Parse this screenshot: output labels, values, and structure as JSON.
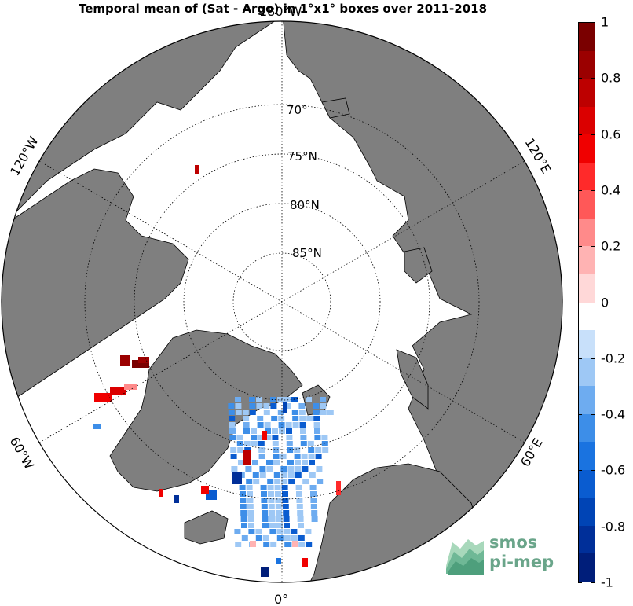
{
  "title": "Temporal mean of (Sat - Argo) in 1°x1° boxes over 2011-2018",
  "map": {
    "projection": "north polar stereographic",
    "lat_labels": [
      "70°",
      "75°N",
      "80°N",
      "85°N"
    ],
    "lon_labels": {
      "top": "180°W",
      "left_upper": "120°W",
      "right_upper": "120°E",
      "left_lower": "60°W",
      "right_lower": "60°E",
      "bottom": "0°"
    },
    "colors": {
      "land": "#7f7f7f",
      "ocean": "#ffffff",
      "coast": "#000000"
    }
  },
  "colorbar": {
    "min": -1,
    "max": 1,
    "step": 0.1,
    "tick_labels": [
      "1",
      "0.8",
      "0.6",
      "0.4",
      "0.2",
      "0",
      "-0.2",
      "-0.4",
      "-0.6",
      "-0.8",
      "-1"
    ],
    "colors_top_to_bottom": [
      "#7a0000",
      "#9b0000",
      "#bd0000",
      "#db0000",
      "#f00000",
      "#ff2a2a",
      "#ff5858",
      "#ff8a8a",
      "#ffb3b3",
      "#ffd8d8",
      "#ffffff",
      "#c8e0fa",
      "#9ec8f5",
      "#6eacf0",
      "#3d8ee8",
      "#1a73e0",
      "#0a5cd0",
      "#0044b5",
      "#002f99",
      "#001e7a"
    ]
  },
  "logo": {
    "line1": "smos",
    "line2": "pi-mep"
  }
}
